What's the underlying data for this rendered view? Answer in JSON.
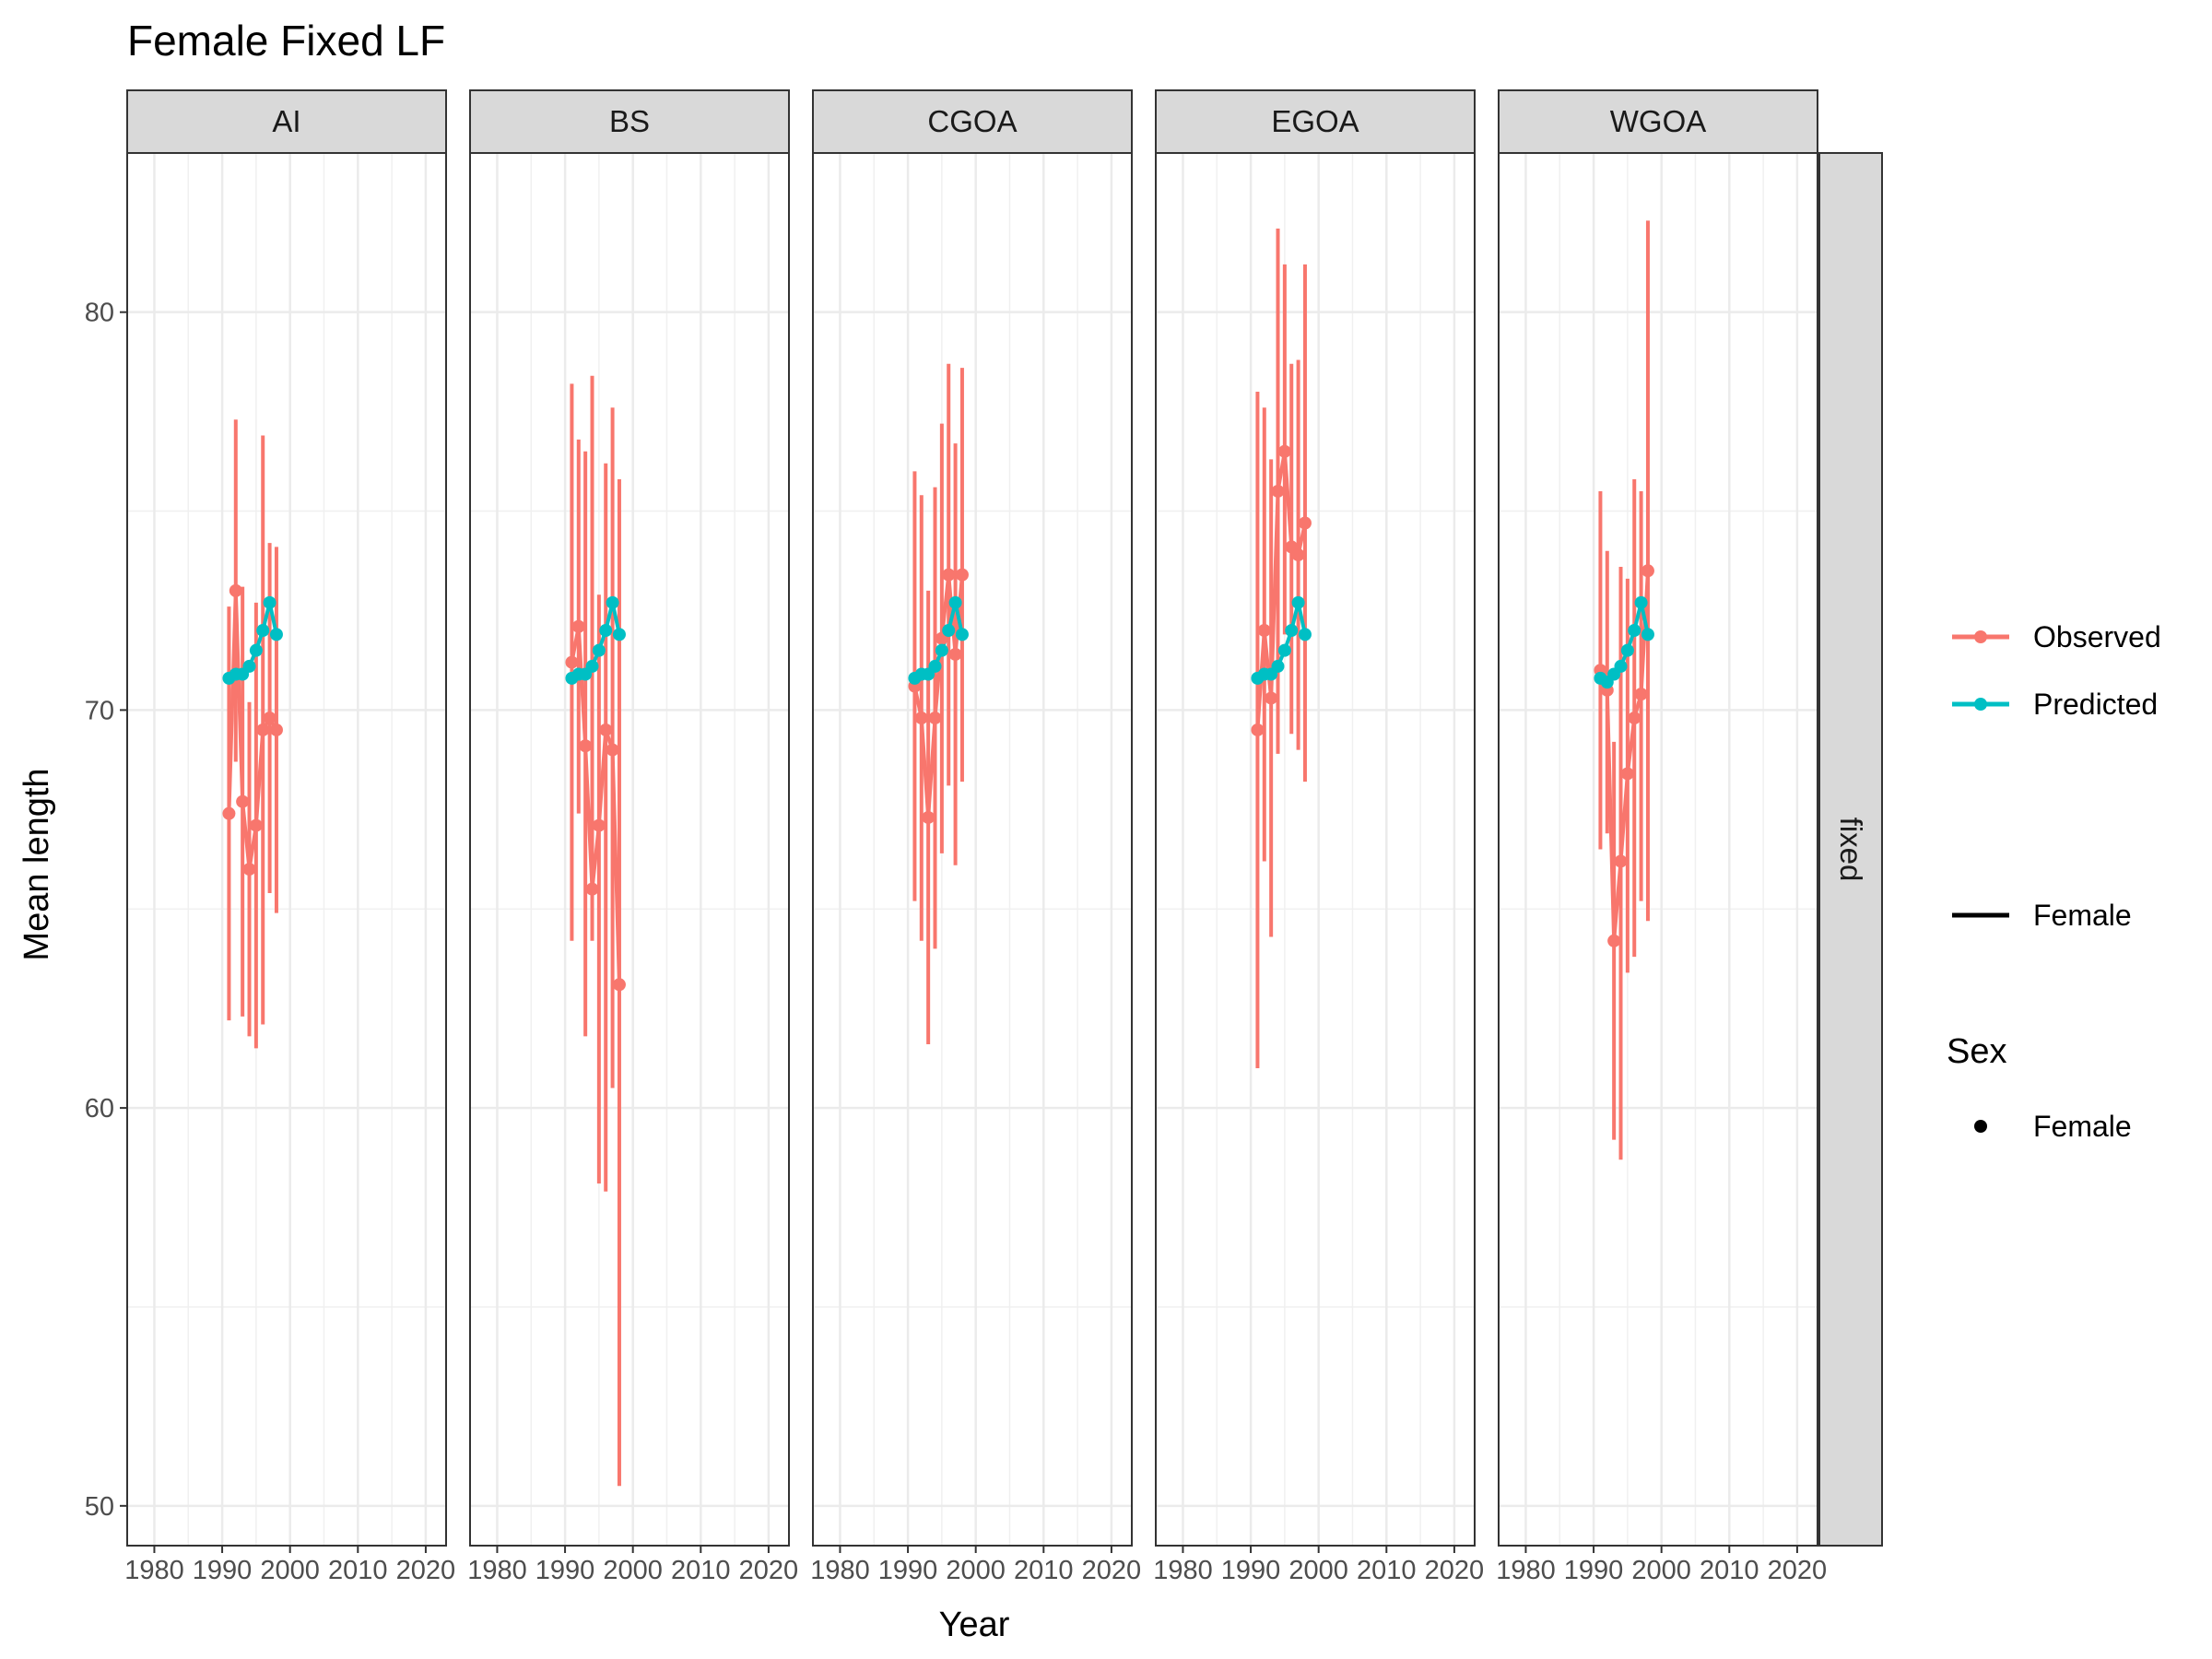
{
  "chart_data": {
    "type": "line",
    "title": "Female Fixed LF",
    "xlabel": "Year",
    "ylabel": "Mean length",
    "xlim": [
      1976,
      2023
    ],
    "ylim": [
      49,
      84
    ],
    "xticks": [
      1980,
      1990,
      2000,
      2010,
      2020
    ],
    "yticks": [
      50,
      60,
      70,
      80
    ],
    "grid": true,
    "row_strip": "fixed",
    "colors": {
      "observed": "#F8766D",
      "predicted": "#00BFC4"
    },
    "legend": {
      "placement": "right",
      "series_items": [
        {
          "label": "Observed",
          "color": "#F8766D"
        },
        {
          "label": "Predicted",
          "color": "#00BFC4"
        }
      ],
      "linetype_item": "Female",
      "shape_title": "Sex",
      "shape_item": "Female"
    },
    "panels": [
      {
        "name": "AI",
        "observed": [
          {
            "x": 1991,
            "y": 67.4,
            "lo": 62.2,
            "hi": 72.6
          },
          {
            "x": 1992,
            "y": 73.0,
            "lo": 68.7,
            "hi": 77.3
          },
          {
            "x": 1993,
            "y": 67.7,
            "lo": 62.3,
            "hi": 73.1
          },
          {
            "x": 1994,
            "y": 66.0,
            "lo": 61.8,
            "hi": 70.2
          },
          {
            "x": 1995,
            "y": 67.1,
            "lo": 61.5,
            "hi": 72.7
          },
          {
            "x": 1996,
            "y": 69.5,
            "lo": 62.1,
            "hi": 76.9
          },
          {
            "x": 1997,
            "y": 69.8,
            "lo": 65.4,
            "hi": 74.2
          },
          {
            "x": 1998,
            "y": 69.5,
            "lo": 64.9,
            "hi": 74.1
          }
        ],
        "predicted": [
          {
            "x": 1991,
            "y": 70.8
          },
          {
            "x": 1992,
            "y": 70.9
          },
          {
            "x": 1993,
            "y": 70.9
          },
          {
            "x": 1994,
            "y": 71.1
          },
          {
            "x": 1995,
            "y": 71.5
          },
          {
            "x": 1996,
            "y": 72.0
          },
          {
            "x": 1997,
            "y": 72.7
          },
          {
            "x": 1998,
            "y": 71.9
          }
        ]
      },
      {
        "name": "BS",
        "observed": [
          {
            "x": 1991,
            "y": 71.2,
            "lo": 64.2,
            "hi": 78.2
          },
          {
            "x": 1992,
            "y": 72.1,
            "lo": 67.4,
            "hi": 76.8
          },
          {
            "x": 1993,
            "y": 69.1,
            "lo": 61.8,
            "hi": 76.5
          },
          {
            "x": 1994,
            "y": 65.5,
            "lo": 64.2,
            "hi": 78.4
          },
          {
            "x": 1995,
            "y": 67.1,
            "lo": 58.1,
            "hi": 72.9
          },
          {
            "x": 1996,
            "y": 69.5,
            "lo": 57.9,
            "hi": 76.2
          },
          {
            "x": 1997,
            "y": 69.0,
            "lo": 60.5,
            "hi": 77.6
          },
          {
            "x": 1998,
            "y": 63.1,
            "lo": 50.5,
            "hi": 75.8
          }
        ],
        "predicted": [
          {
            "x": 1991,
            "y": 70.8
          },
          {
            "x": 1992,
            "y": 70.9
          },
          {
            "x": 1993,
            "y": 70.9
          },
          {
            "x": 1994,
            "y": 71.1
          },
          {
            "x": 1995,
            "y": 71.5
          },
          {
            "x": 1996,
            "y": 72.0
          },
          {
            "x": 1997,
            "y": 72.7
          },
          {
            "x": 1998,
            "y": 71.9
          }
        ]
      },
      {
        "name": "CGOA",
        "observed": [
          {
            "x": 1991,
            "y": 70.6,
            "lo": 65.2,
            "hi": 76.0
          },
          {
            "x": 1992,
            "y": 69.8,
            "lo": 64.2,
            "hi": 75.4
          },
          {
            "x": 1993,
            "y": 67.3,
            "lo": 61.6,
            "hi": 73.0
          },
          {
            "x": 1994,
            "y": 69.8,
            "lo": 64.0,
            "hi": 75.6
          },
          {
            "x": 1995,
            "y": 71.8,
            "lo": 66.4,
            "hi": 77.2
          },
          {
            "x": 1996,
            "y": 73.4,
            "lo": 68.1,
            "hi": 78.7
          },
          {
            "x": 1997,
            "y": 71.4,
            "lo": 66.1,
            "hi": 76.7
          },
          {
            "x": 1998,
            "y": 73.4,
            "lo": 68.2,
            "hi": 78.6
          }
        ],
        "predicted": [
          {
            "x": 1991,
            "y": 70.8
          },
          {
            "x": 1992,
            "y": 70.9
          },
          {
            "x": 1993,
            "y": 70.9
          },
          {
            "x": 1994,
            "y": 71.1
          },
          {
            "x": 1995,
            "y": 71.5
          },
          {
            "x": 1996,
            "y": 72.0
          },
          {
            "x": 1997,
            "y": 72.7
          },
          {
            "x": 1998,
            "y": 71.9
          }
        ]
      },
      {
        "name": "EGOA",
        "observed": [
          {
            "x": 1991,
            "y": 69.5,
            "lo": 61.0,
            "hi": 78.0
          },
          {
            "x": 1992,
            "y": 72.0,
            "lo": 66.2,
            "hi": 77.6
          },
          {
            "x": 1993,
            "y": 70.3,
            "lo": 64.3,
            "hi": 76.3
          },
          {
            "x": 1994,
            "y": 75.5,
            "lo": 68.9,
            "hi": 82.1
          },
          {
            "x": 1995,
            "y": 76.5,
            "lo": 71.9,
            "hi": 81.2
          },
          {
            "x": 1996,
            "y": 74.1,
            "lo": 69.4,
            "hi": 78.7
          },
          {
            "x": 1997,
            "y": 73.9,
            "lo": 69.0,
            "hi": 78.8
          },
          {
            "x": 1998,
            "y": 74.7,
            "lo": 68.2,
            "hi": 81.2
          }
        ],
        "predicted": [
          {
            "x": 1991,
            "y": 70.8
          },
          {
            "x": 1992,
            "y": 70.9
          },
          {
            "x": 1993,
            "y": 70.9
          },
          {
            "x": 1994,
            "y": 71.1
          },
          {
            "x": 1995,
            "y": 71.5
          },
          {
            "x": 1996,
            "y": 72.0
          },
          {
            "x": 1997,
            "y": 72.7
          },
          {
            "x": 1998,
            "y": 71.9
          }
        ]
      },
      {
        "name": "WGOA",
        "observed": [
          {
            "x": 1991,
            "y": 71.0,
            "lo": 66.5,
            "hi": 75.5
          },
          {
            "x": 1992,
            "y": 70.5,
            "lo": 66.9,
            "hi": 74.0
          },
          {
            "x": 1993,
            "y": 64.2,
            "lo": 59.2,
            "hi": 69.2
          },
          {
            "x": 1994,
            "y": 66.2,
            "lo": 58.7,
            "hi": 73.6
          },
          {
            "x": 1995,
            "y": 68.4,
            "lo": 63.4,
            "hi": 73.3
          },
          {
            "x": 1996,
            "y": 69.8,
            "lo": 63.8,
            "hi": 75.8
          },
          {
            "x": 1997,
            "y": 70.4,
            "lo": 65.2,
            "hi": 75.5
          },
          {
            "x": 1998,
            "y": 73.5,
            "lo": 64.7,
            "hi": 82.3
          }
        ],
        "predicted": [
          {
            "x": 1991,
            "y": 70.8
          },
          {
            "x": 1992,
            "y": 70.7
          },
          {
            "x": 1993,
            "y": 70.9
          },
          {
            "x": 1994,
            "y": 71.1
          },
          {
            "x": 1995,
            "y": 71.5
          },
          {
            "x": 1996,
            "y": 72.0
          },
          {
            "x": 1997,
            "y": 72.7
          },
          {
            "x": 1998,
            "y": 71.9
          }
        ]
      }
    ]
  }
}
